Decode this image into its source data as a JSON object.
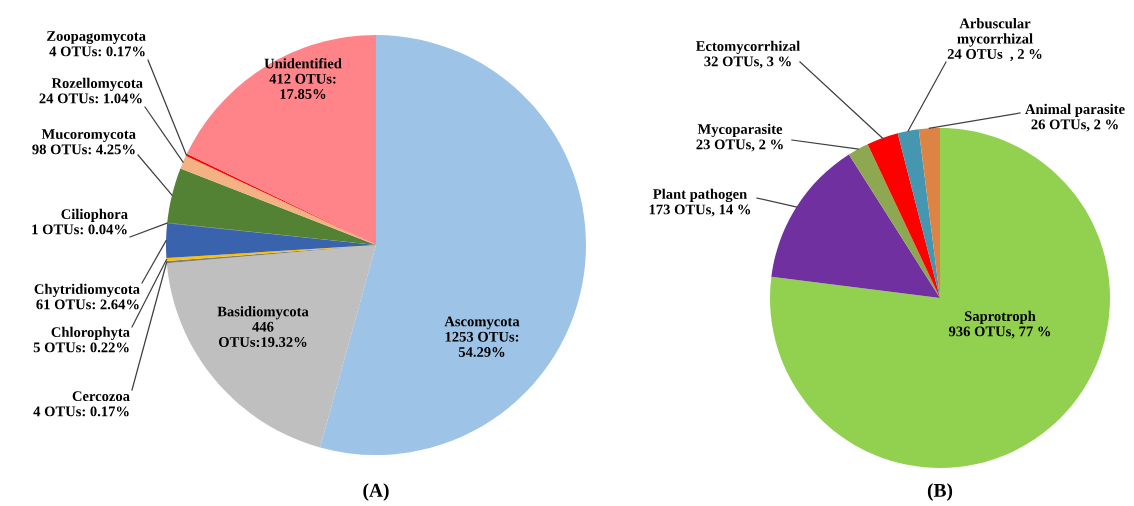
{
  "chart_data": [
    {
      "type": "pie",
      "title": "(A)",
      "categories": [
        "Ascomycota",
        "Basidiomycota",
        "Cercozoa",
        "Chlorophyta",
        "Chytridiomycota",
        "Ciliophora",
        "Mucoromycota",
        "Rozellomycota",
        "Zoopagomycota",
        "Unidentified"
      ],
      "values": [
        54.29,
        19.32,
        0.17,
        0.22,
        2.64,
        0.04,
        4.25,
        1.04,
        0.17,
        17.85
      ],
      "value_labels": [
        "1253 OTUs:\n54.29%",
        "446\nOTUs:19.32%",
        "4 OTUs: 0.17%",
        "5 OTUs: 0.22%",
        "61 OTUs: 2.64%",
        "1 OTUs: 0.04%",
        "98 OTUs: 4.25%",
        "24 OTUs: 1.04%",
        "4 OTUs: 0.17%",
        "412 OTUs:\n17.85%"
      ],
      "colors": [
        "#9dc3e6",
        "#bfbfbf",
        "#7f7f7f",
        "#ffc000",
        "#3a63ad",
        "#264478",
        "#548235",
        "#f4b183",
        "#ff0000",
        "#ff8489"
      ]
    },
    {
      "type": "pie",
      "title": "(B)",
      "categories": [
        "Saprotroph",
        "Plant pathogen",
        "Mycoparasite",
        "Ectomycorrhizal",
        "Arbuscular\nmycorrhizal",
        "Animal parasite"
      ],
      "values": [
        77,
        14,
        2,
        3,
        2,
        2
      ],
      "value_labels": [
        "936 OTUs, 77 %",
        "173 OTUs, 14 %",
        "23 OTUs, 2 %",
        "32 OTUs, 3 %",
        "24 OTUs  , 2 %",
        "26 OTUs, 2 %"
      ],
      "colors": [
        "#92d050",
        "#7030a0",
        "#8ea852",
        "#ff0000",
        "#4596b0",
        "#dd8444"
      ]
    }
  ]
}
